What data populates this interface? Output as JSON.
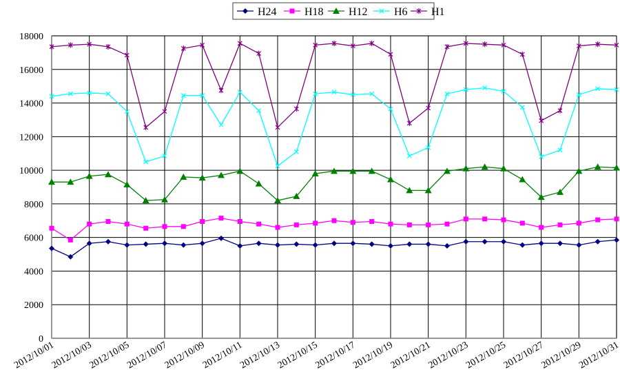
{
  "chart_data": {
    "type": "line",
    "title": "",
    "xlabel": "",
    "ylabel": "",
    "ylim": [
      0,
      18000
    ],
    "yticks": [
      0,
      2000,
      4000,
      6000,
      8000,
      10000,
      12000,
      14000,
      16000,
      18000
    ],
    "grid": true,
    "legend_position": "top",
    "x": [
      "2012/10/01",
      "2012/10/02",
      "2012/10/03",
      "2012/10/04",
      "2012/10/05",
      "2012/10/06",
      "2012/10/07",
      "2012/10/08",
      "2012/10/09",
      "2012/10/10",
      "2012/10/11",
      "2012/10/12",
      "2012/10/13",
      "2012/10/14",
      "2012/10/15",
      "2012/10/16",
      "2012/10/17",
      "2012/10/18",
      "2012/10/19",
      "2012/10/20",
      "2012/10/21",
      "2012/10/22",
      "2012/10/23",
      "2012/10/24",
      "2012/10/25",
      "2012/10/26",
      "2012/10/27",
      "2012/10/28",
      "2012/10/29",
      "2012/10/30",
      "2012/10/31"
    ],
    "xtick_labels": [
      "2012/10/01",
      "2012/10/03",
      "2012/10/05",
      "2012/10/07",
      "2012/10/09",
      "2012/10/11",
      "2012/10/13",
      "2012/10/15",
      "2012/10/17",
      "2012/10/19",
      "2012/10/21",
      "2012/10/23",
      "2012/10/25",
      "2012/10/27",
      "2012/10/29",
      "2012/10/31"
    ],
    "series": [
      {
        "name": "H24",
        "color": "#000080",
        "marker": "diamond",
        "values": [
          5350,
          4850,
          5650,
          5750,
          5550,
          5600,
          5650,
          5550,
          5650,
          5950,
          5500,
          5650,
          5550,
          5600,
          5550,
          5650,
          5650,
          5600,
          5500,
          5600,
          5600,
          5500,
          5750,
          5750,
          5750,
          5550,
          5650,
          5650,
          5550,
          5750,
          5850
        ]
      },
      {
        "name": "H18",
        "color": "#ff00ff",
        "marker": "square",
        "values": [
          6550,
          5850,
          6800,
          6950,
          6800,
          6550,
          6650,
          6650,
          6950,
          7150,
          6950,
          6800,
          6600,
          6750,
          6850,
          7000,
          6900,
          6950,
          6800,
          6750,
          6750,
          6800,
          7100,
          7100,
          7050,
          6850,
          6600,
          6750,
          6850,
          7050,
          7100
        ]
      },
      {
        "name": "H12",
        "color": "#008000",
        "marker": "triangle",
        "values": [
          9300,
          9300,
          9650,
          9750,
          9150,
          8200,
          8250,
          9600,
          9550,
          9700,
          9950,
          9200,
          8200,
          8450,
          9800,
          9950,
          9950,
          9950,
          9450,
          8800,
          8800,
          9950,
          10100,
          10200,
          10100,
          9450,
          8400,
          8700,
          9950,
          10200,
          10150
        ]
      },
      {
        "name": "H6",
        "color": "#00ffff",
        "marker": "x",
        "values": [
          14400,
          14550,
          14600,
          14550,
          13500,
          10500,
          10850,
          14450,
          14450,
          12700,
          14650,
          13550,
          10250,
          11100,
          14550,
          14650,
          14500,
          14550,
          13650,
          10850,
          11350,
          14550,
          14800,
          14900,
          14700,
          13750,
          10800,
          11200,
          14500,
          14850,
          14800
        ]
      },
      {
        "name": "H1",
        "color": "#800080",
        "marker": "star",
        "values": [
          17350,
          17450,
          17500,
          17350,
          16850,
          12550,
          13500,
          17250,
          17450,
          14750,
          17550,
          16950,
          12550,
          13650,
          17450,
          17550,
          17400,
          17550,
          16900,
          12800,
          13700,
          17350,
          17550,
          17500,
          17450,
          16900,
          12950,
          13550,
          17400,
          17500,
          17450
        ]
      }
    ]
  }
}
